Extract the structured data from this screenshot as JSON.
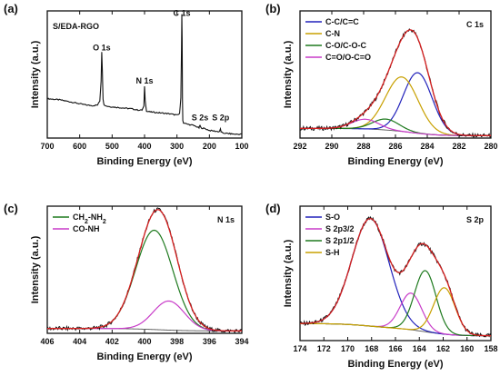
{
  "chart_data": [
    {
      "type": "line",
      "panel_label": "(a)",
      "title": "S/EDA-RGO",
      "xlabel": "Binding Energy (eV)",
      "ylabel": "Intensity (a.u.)",
      "xlim": [
        700,
        100
      ],
      "x_reversed": true,
      "xticks": [
        700,
        600,
        500,
        400,
        300,
        200,
        100
      ],
      "ylim": [
        0,
        100
      ],
      "show_y_ticks": false,
      "legend_position": "none",
      "colors": {
        "spectrum": "#111111"
      },
      "peak_labels": [
        {
          "label": "O 1s",
          "x": 532,
          "y": 69
        },
        {
          "label": "N 1s",
          "x": 400,
          "y": 43
        },
        {
          "label": "C 1s",
          "x": 285,
          "y": 96
        },
        {
          "label": "S 2s",
          "x": 229,
          "y": 14
        },
        {
          "label": "S 2p",
          "x": 165,
          "y": 14
        }
      ],
      "series": [
        {
          "name": "",
          "x": [
            700,
            680,
            660,
            640,
            620,
            600,
            580,
            560,
            545,
            538,
            534,
            532,
            530,
            528,
            525,
            515,
            500,
            480,
            460,
            440,
            420,
            408,
            402,
            400,
            398,
            394,
            380,
            360,
            340,
            320,
            300,
            292,
            288,
            286,
            285,
            284,
            283,
            282,
            280,
            270,
            260,
            250,
            240,
            232,
            229,
            226,
            215,
            200,
            185,
            170,
            166,
            164,
            160,
            140,
            120,
            100
          ],
          "y": [
            31,
            30.5,
            30,
            29,
            28,
            27,
            26,
            25.5,
            26,
            29,
            45,
            68,
            52,
            31,
            26,
            25,
            24.5,
            24,
            23.5,
            23,
            22,
            22,
            25,
            41,
            30,
            21,
            20.5,
            20,
            19.5,
            19,
            18,
            19,
            32,
            70,
            97,
            78,
            30,
            14,
            12,
            11,
            10.5,
            10,
            9,
            8,
            10,
            8,
            7.5,
            6,
            5.5,
            5,
            7,
            5,
            4,
            3.5,
            3,
            3
          ]
        }
      ]
    },
    {
      "type": "line",
      "panel_label": "(b)",
      "title": "C 1s",
      "xlabel": "Binding Energy (eV)",
      "ylabel": "Intensity (a.u.)",
      "xlim": [
        292,
        280
      ],
      "x_reversed": true,
      "xticks": [
        292,
        290,
        288,
        286,
        284,
        282,
        280
      ],
      "ylim": [
        0,
        105
      ],
      "show_y_ticks": false,
      "legend_position": "top-left",
      "series": [
        {
          "name": "C-C/C=C",
          "color": "#2222bb",
          "center": 284.6,
          "height": 50,
          "width": 1.5
        },
        {
          "name": "C-N",
          "color": "#c8a000",
          "center": 285.6,
          "height": 45,
          "width": 1.7
        },
        {
          "name": "C-O/C-O-C",
          "color": "#1f7a1f",
          "center": 286.6,
          "height": 9,
          "width": 1.4
        },
        {
          "name": "C=O/O-C=O",
          "color": "#c83cc8",
          "center": 287.9,
          "height": 8,
          "width": 1.4
        }
      ],
      "background": {
        "left_value": 8,
        "right_value": 2
      },
      "envelope_color": "#d62020",
      "raw_color": "#111111"
    },
    {
      "type": "line",
      "panel_label": "(c)",
      "title": "N 1s",
      "xlabel": "Binding Energy (eV)",
      "ylabel": "Intensity (a.u.)",
      "xlim": [
        406,
        394
      ],
      "x_reversed": true,
      "xticks": [
        406,
        404,
        402,
        400,
        398,
        396,
        394
      ],
      "ylim": [
        0,
        105
      ],
      "show_y_ticks": false,
      "legend_position": "top-left",
      "series": [
        {
          "name": "CH2-NH2",
          "color": "#1f7a1f",
          "center": 399.4,
          "height": 82,
          "width": 1.9
        },
        {
          "name": "CO-NH",
          "color": "#c83cc8",
          "center": 398.5,
          "height": 24,
          "width": 1.6
        }
      ],
      "background": {
        "left_value": 4,
        "right_value": 2
      },
      "envelope_color": "#d62020",
      "raw_color": "#111111"
    },
    {
      "type": "line",
      "panel_label": "(d)",
      "title": "S 2p",
      "xlabel": "Binding Energy (eV)",
      "ylabel": "Intensity (a.u.)",
      "xlim": [
        174,
        158
      ],
      "x_reversed": true,
      "xticks": [
        174,
        172,
        170,
        168,
        166,
        164,
        162,
        160,
        158
      ],
      "ylim": [
        0,
        110
      ],
      "show_y_ticks": false,
      "legend_position": "top-left",
      "series": [
        {
          "name": "S-O",
          "color": "#2222bb",
          "center": 168.1,
          "height": 88,
          "width": 2.6
        },
        {
          "name": "S 2p3/2",
          "color": "#c83cc8",
          "center": 164.7,
          "height": 30,
          "width": 1.5
        },
        {
          "name": "S 2p1/2",
          "color": "#1f7a1f",
          "center": 163.5,
          "height": 50,
          "width": 1.5
        },
        {
          "name": "S-H",
          "color": "#c8a000",
          "center": 161.9,
          "height": 38,
          "width": 1.5
        }
      ],
      "background": {
        "left_value": 14,
        "right_value": 4
      },
      "envelope_color": "#d62020",
      "raw_color": "#111111"
    }
  ]
}
